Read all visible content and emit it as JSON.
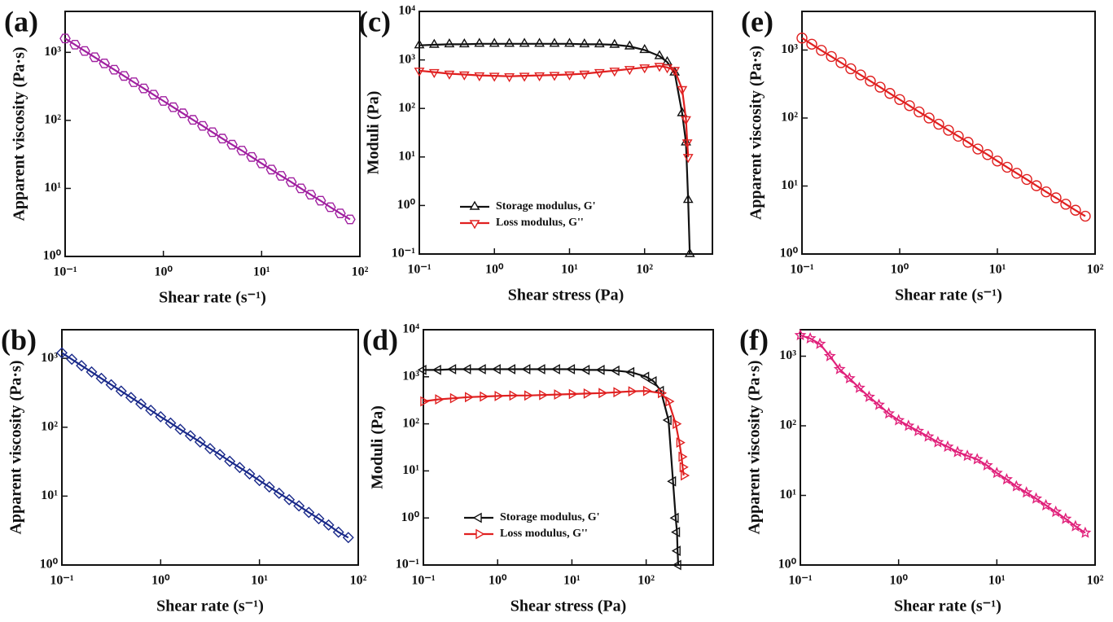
{
  "chart_data": [
    {
      "type": "line",
      "panel": "(a)",
      "x_label": "Shear rate (s⁻¹)",
      "y_label": "Apparent viscosity (Pa·s)",
      "log_x": true,
      "log_y": true,
      "color": "#a020a0",
      "marker": "hexagon",
      "x": [
        0.1,
        0.126,
        0.158,
        0.2,
        0.251,
        0.316,
        0.398,
        0.501,
        0.631,
        0.794,
        1,
        1.26,
        1.58,
        2,
        2.51,
        3.16,
        3.98,
        5.01,
        6.31,
        7.94,
        10,
        12.6,
        15.8,
        20,
        25.1,
        31.6,
        39.8,
        50.1,
        63.1,
        79.4
      ],
      "values": [
        1600,
        1295,
        1048,
        848,
        687,
        556,
        450,
        364,
        295,
        239,
        193,
        156,
        127,
        102,
        83,
        67,
        54,
        44,
        36,
        29,
        23.3,
        18.9,
        15.3,
        12.4,
        10.0,
        8.1,
        6.6,
        5.3,
        4.3,
        3.5
      ],
      "xlim": [
        0.1,
        100
      ],
      "ylim": [
        1,
        4000
      ],
      "xticks": [
        {
          "value": 0.1,
          "label": "10⁻¹"
        },
        {
          "value": 1,
          "label": "10⁰"
        },
        {
          "value": 10,
          "label": "10¹"
        },
        {
          "value": 100,
          "label": "10²"
        }
      ],
      "yticks": [
        {
          "value": 1,
          "label": "10⁰"
        },
        {
          "value": 10,
          "label": "10¹"
        },
        {
          "value": 100,
          "label": "10²"
        },
        {
          "value": 1000,
          "label": "10³"
        }
      ]
    },
    {
      "type": "line",
      "panel": "(b)",
      "x_label": "Shear rate (s⁻¹)",
      "y_label": "Apparent viscosity (Pa·s)",
      "log_x": true,
      "log_y": true,
      "color": "#1a2a8a",
      "marker": "diamond",
      "x": [
        0.1,
        0.126,
        0.158,
        0.2,
        0.251,
        0.316,
        0.398,
        0.501,
        0.631,
        0.794,
        1,
        1.26,
        1.58,
        2,
        2.51,
        3.16,
        3.98,
        5.01,
        6.31,
        7.94,
        10,
        12.6,
        15.8,
        20,
        25.1,
        31.6,
        39.8,
        50.1,
        63.1,
        79.4
      ],
      "values": [
        1200,
        969,
        783,
        633,
        511,
        413,
        334,
        270,
        218,
        176,
        142,
        115,
        93,
        75,
        61,
        49,
        40,
        32,
        26,
        21,
        16.8,
        13.6,
        11.0,
        8.9,
        7.2,
        5.8,
        4.7,
        3.8,
        3.0,
        2.5
      ],
      "xlim": [
        0.1,
        100
      ],
      "ylim": [
        1,
        2600
      ],
      "xticks": [
        {
          "value": 0.1,
          "label": "10⁻¹"
        },
        {
          "value": 1,
          "label": "10⁰"
        },
        {
          "value": 10,
          "label": "10¹"
        },
        {
          "value": 100,
          "label": "10²"
        }
      ],
      "yticks": [
        {
          "value": 1,
          "label": "10⁰"
        },
        {
          "value": 10,
          "label": "10¹"
        },
        {
          "value": 100,
          "label": "10²"
        },
        {
          "value": 1000,
          "label": "10³"
        }
      ]
    },
    {
      "type": "line",
      "panel": "(c)",
      "x_label": "Shear stress (Pa)",
      "y_label": "Moduli (Pa)",
      "log_x": true,
      "log_y": true,
      "legend": "lower left",
      "series": [
        {
          "name": "Storage modulus, G'",
          "color": "#111111",
          "marker": "triangle-up",
          "x": [
            0.1,
            0.158,
            0.251,
            0.398,
            0.631,
            1,
            1.58,
            2.51,
            3.98,
            6.31,
            10,
            15.8,
            25.1,
            39.8,
            63.1,
            100,
            158,
            200,
            251,
            316,
            355,
            380,
            400
          ],
          "values": [
            2000,
            2050,
            2100,
            2100,
            2150,
            2150,
            2150,
            2150,
            2150,
            2150,
            2150,
            2100,
            2100,
            2050,
            1900,
            1600,
            1200,
            900,
            550,
            80,
            20,
            1.3,
            0.1
          ]
        },
        {
          "name": "Loss modulus, G''",
          "color": "#e02020",
          "marker": "triangle-down",
          "x": [
            0.1,
            0.158,
            0.251,
            0.398,
            0.631,
            1,
            1.58,
            2.51,
            3.98,
            6.31,
            10,
            15.8,
            25.1,
            39.8,
            63.1,
            100,
            158,
            200,
            251,
            316,
            355,
            370,
            380
          ],
          "values": [
            600,
            560,
            520,
            500,
            480,
            470,
            460,
            470,
            480,
            490,
            500,
            520,
            560,
            600,
            650,
            700,
            750,
            700,
            620,
            250,
            60,
            20,
            10
          ]
        }
      ],
      "xlim": [
        0.1,
        800
      ],
      "ylim": [
        0.1,
        10000
      ],
      "xticks": [
        {
          "value": 0.1,
          "label": "10⁻¹"
        },
        {
          "value": 1,
          "label": "10⁰"
        },
        {
          "value": 10,
          "label": "10¹"
        },
        {
          "value": 100,
          "label": "10²"
        }
      ],
      "yticks": [
        {
          "value": 0.1,
          "label": "10⁻¹"
        },
        {
          "value": 1,
          "label": "10⁰"
        },
        {
          "value": 10,
          "label": "10¹"
        },
        {
          "value": 100,
          "label": "10²"
        },
        {
          "value": 1000,
          "label": "10³"
        },
        {
          "value": 10000,
          "label": "10⁴"
        }
      ]
    },
    {
      "type": "line",
      "panel": "(d)",
      "x_label": "Shear stress (Pa)",
      "y_label": "Moduli (Pa)",
      "log_x": true,
      "log_y": true,
      "legend": "lower left",
      "series": [
        {
          "name": "Storage modulus, G'",
          "color": "#111111",
          "marker": "triangle-left",
          "x": [
            0.1,
            0.158,
            0.251,
            0.398,
            0.631,
            1,
            1.58,
            2.51,
            3.98,
            6.31,
            10,
            15.8,
            25.1,
            39.8,
            63.1,
            100,
            126,
            158,
            200,
            230,
            250,
            260,
            265,
            270
          ],
          "values": [
            1400,
            1400,
            1450,
            1450,
            1450,
            1450,
            1450,
            1450,
            1450,
            1450,
            1450,
            1400,
            1400,
            1350,
            1250,
            1000,
            800,
            500,
            120,
            6,
            1,
            0.5,
            0.2,
            0.1
          ]
        },
        {
          "name": "Loss modulus, G''",
          "color": "#e02020",
          "marker": "triangle-right",
          "x": [
            0.1,
            0.158,
            0.251,
            0.398,
            0.631,
            1,
            1.58,
            2.51,
            3.98,
            6.31,
            10,
            15.8,
            25.1,
            39.8,
            63.1,
            100,
            158,
            200,
            250,
            280,
            300,
            310,
            320
          ],
          "values": [
            300,
            330,
            350,
            370,
            380,
            390,
            400,
            400,
            410,
            420,
            430,
            440,
            450,
            470,
            490,
            500,
            450,
            300,
            100,
            40,
            20,
            12,
            8
          ]
        }
      ],
      "xlim": [
        0.1,
        800
      ],
      "ylim": [
        0.1,
        10000
      ],
      "xticks": [
        {
          "value": 0.1,
          "label": "10⁻¹"
        },
        {
          "value": 1,
          "label": "10⁰"
        },
        {
          "value": 10,
          "label": "10¹"
        },
        {
          "value": 100,
          "label": "10²"
        }
      ],
      "yticks": [
        {
          "value": 0.1,
          "label": "10⁻¹"
        },
        {
          "value": 1,
          "label": "10⁰"
        },
        {
          "value": 10,
          "label": "10¹"
        },
        {
          "value": 100,
          "label": "10²"
        },
        {
          "value": 1000,
          "label": "10³"
        },
        {
          "value": 10000,
          "label": "10⁴"
        }
      ]
    },
    {
      "type": "line",
      "panel": "(e)",
      "x_label": "Shear rate (s⁻¹)",
      "y_label": "Apparent viscosity (Pa·s)",
      "log_x": true,
      "log_y": true,
      "color": "#e02020",
      "marker": "circle",
      "x": [
        0.1,
        0.126,
        0.158,
        0.2,
        0.251,
        0.316,
        0.398,
        0.501,
        0.631,
        0.794,
        1,
        1.26,
        1.58,
        2,
        2.51,
        3.16,
        3.98,
        5.01,
        6.31,
        7.94,
        10,
        12.6,
        15.8,
        20,
        25.1,
        31.6,
        39.8,
        50.1,
        63.1,
        79.4
      ],
      "values": [
        1500,
        1218,
        989,
        803,
        652,
        530,
        430,
        349,
        284,
        230,
        187,
        152,
        123,
        100,
        81,
        66,
        54,
        44,
        35,
        29,
        23.3,
        18.9,
        15.4,
        12.5,
        10.1,
        8.2,
        6.7,
        5.4,
        4.4,
        3.6
      ],
      "xlim": [
        0.1,
        100
      ],
      "ylim": [
        1,
        3700
      ],
      "xticks": [
        {
          "value": 0.1,
          "label": "10⁻¹"
        },
        {
          "value": 1,
          "label": "10⁰"
        },
        {
          "value": 10,
          "label": "10¹"
        },
        {
          "value": 100,
          "label": "10²"
        }
      ],
      "yticks": [
        {
          "value": 1,
          "label": "10⁰"
        },
        {
          "value": 10,
          "label": "10¹"
        },
        {
          "value": 100,
          "label": "10²"
        },
        {
          "value": 1000,
          "label": "10³"
        }
      ]
    },
    {
      "type": "line",
      "panel": "(f)",
      "x_label": "Shear rate (s⁻¹)",
      "y_label": "Apparent viscosity (Pa·s)",
      "log_x": true,
      "log_y": true,
      "color": "#e0207a",
      "marker": "star",
      "x": [
        0.1,
        0.126,
        0.158,
        0.2,
        0.251,
        0.316,
        0.398,
        0.501,
        0.631,
        0.794,
        1,
        1.26,
        1.58,
        2,
        2.51,
        3.16,
        3.98,
        5.01,
        6.31,
        7.94,
        10,
        12.6,
        15.8,
        20,
        25.1,
        31.6,
        39.8,
        50.1,
        63.1,
        79.4
      ],
      "values": [
        2000,
        1800,
        1500,
        1000,
        650,
        480,
        350,
        260,
        200,
        150,
        120,
        100,
        84,
        70,
        58,
        50,
        42,
        37,
        33,
        27,
        21,
        17,
        13.5,
        11,
        9,
        7.2,
        5.8,
        4.6,
        3.6,
        2.9
      ],
      "xlim": [
        0.1,
        100
      ],
      "ylim": [
        1,
        2400
      ],
      "xticks": [
        {
          "value": 0.1,
          "label": "10⁻¹"
        },
        {
          "value": 1,
          "label": "10⁰"
        },
        {
          "value": 10,
          "label": "10¹"
        },
        {
          "value": 100,
          "label": "10²"
        }
      ],
      "yticks": [
        {
          "value": 1,
          "label": "10⁰"
        },
        {
          "value": 10,
          "label": "10¹"
        },
        {
          "value": 100,
          "label": "10²"
        },
        {
          "value": 1000,
          "label": "10³"
        }
      ]
    }
  ]
}
